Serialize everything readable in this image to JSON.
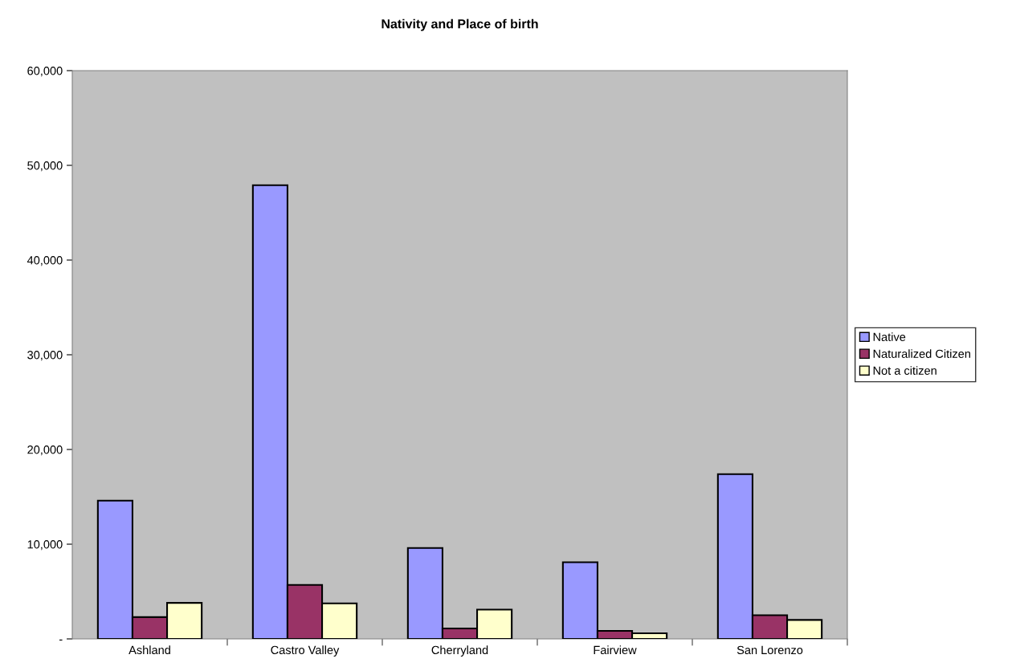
{
  "chart_data": {
    "type": "bar",
    "title": "Nativity and Place of birth",
    "categories": [
      "Ashland",
      "Castro Valley",
      "Cherryland",
      "Fairview",
      "San Lorenzo"
    ],
    "series": [
      {
        "name": "Native",
        "color": "#9999ff",
        "values": [
          14600,
          47900,
          9600,
          8100,
          17400
        ]
      },
      {
        "name": "Naturalized Citizen",
        "color": "#993366",
        "values": [
          2300,
          5700,
          1100,
          850,
          2500
        ]
      },
      {
        "name": "Not a citizen",
        "color": "#ffffcc",
        "values": [
          3800,
          3750,
          3100,
          600,
          2000
        ]
      }
    ],
    "ylim": [
      0,
      60000
    ],
    "yticks": [
      {
        "value": 0,
        "label": "-"
      },
      {
        "value": 10000,
        "label": "10,000"
      },
      {
        "value": 20000,
        "label": "20,000"
      },
      {
        "value": 30000,
        "label": "30,000"
      },
      {
        "value": 40000,
        "label": "40,000"
      },
      {
        "value": 50000,
        "label": "50,000"
      },
      {
        "value": 60000,
        "label": "60,000"
      }
    ],
    "grid": false,
    "legend": "right"
  }
}
